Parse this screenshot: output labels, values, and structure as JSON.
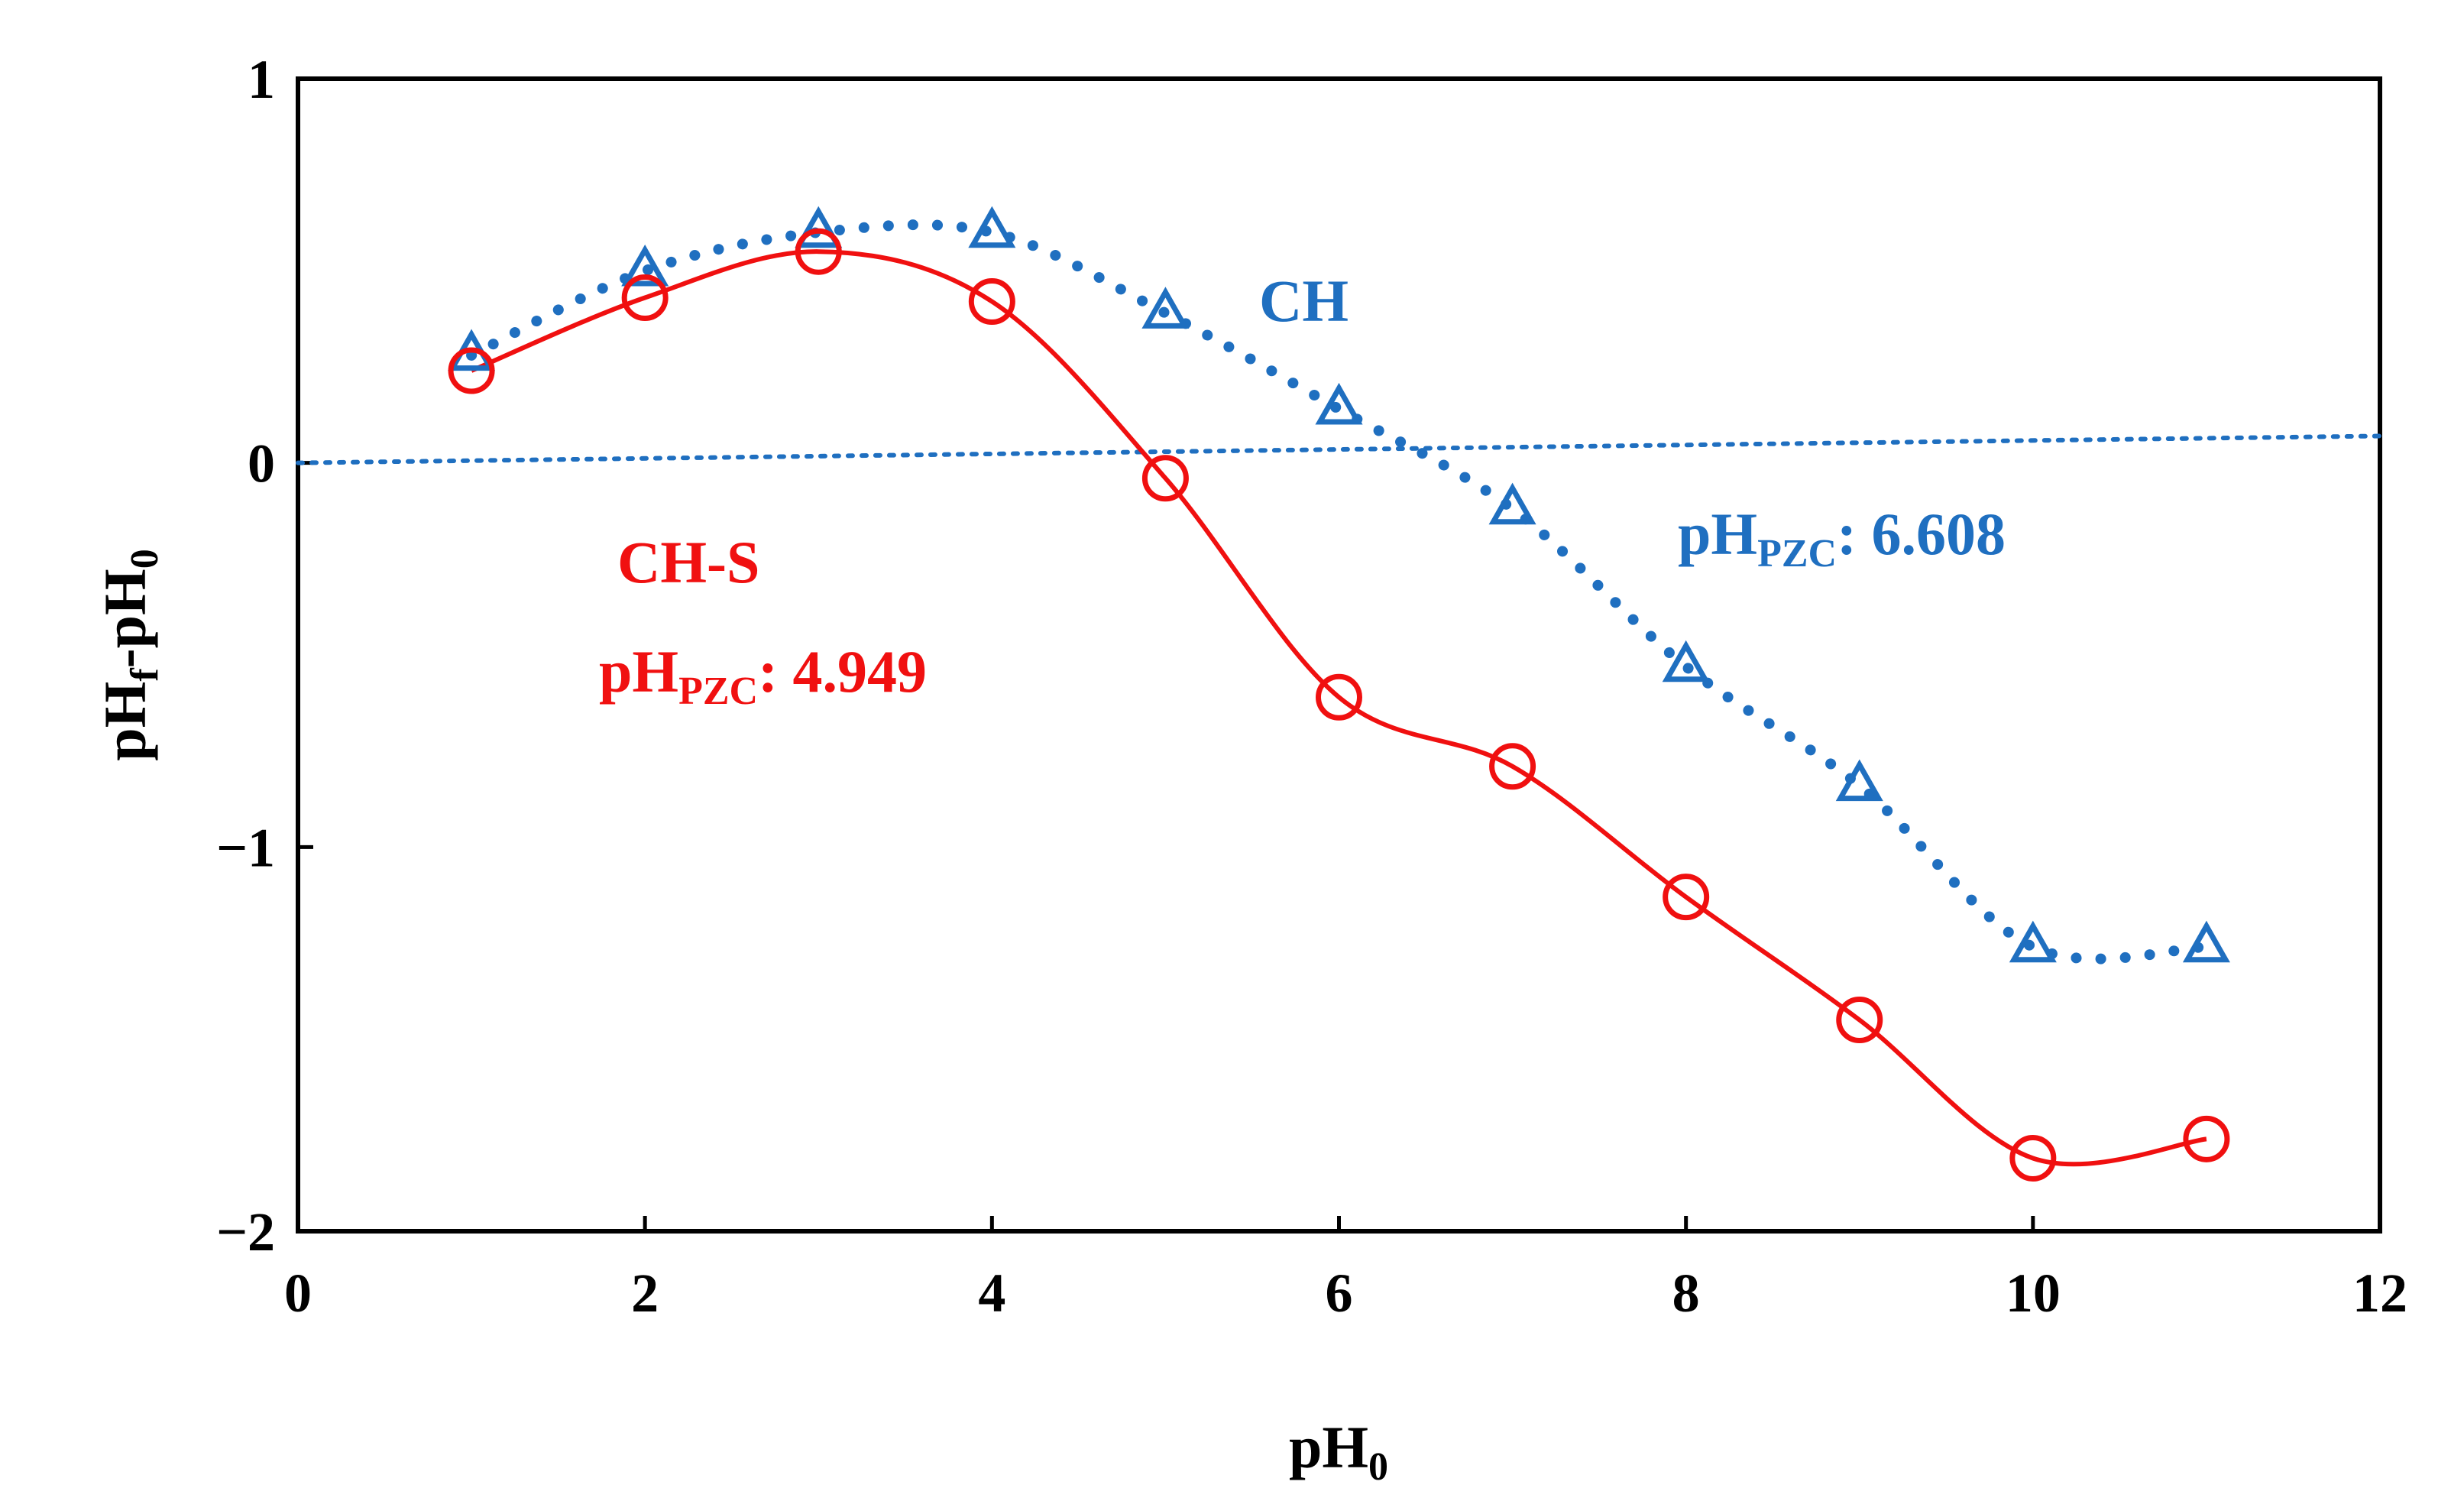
{
  "chart_data": {
    "type": "line",
    "title": "",
    "xlabel": {
      "main": "pH",
      "sub": "0"
    },
    "ylabel": {
      "main": "pH",
      "sub_f": "f",
      "sep": "-pH",
      "sub_0": "0"
    },
    "xlim": [
      0,
      12
    ],
    "ylim": [
      -2,
      1
    ],
    "xticks": [
      0,
      2,
      4,
      6,
      8,
      10,
      12
    ],
    "xtick_labels": [
      "0",
      "2",
      "4",
      "6",
      "8",
      "10",
      "12"
    ],
    "yticks": [
      -2,
      -1,
      0,
      1
    ],
    "ytick_labels": [
      "−2",
      "−1",
      "0",
      "1"
    ],
    "grid": false,
    "legend": "none",
    "series": [
      {
        "name": "CH",
        "color": "#1f6fc0",
        "marker": "triangle",
        "line_style": "dotted",
        "x": [
          1,
          2,
          3,
          4,
          5,
          6,
          7,
          8,
          9,
          10,
          11
        ],
        "y": [
          0.28,
          0.5,
          0.6,
          0.6,
          0.39,
          0.14,
          -0.12,
          -0.53,
          -0.84,
          -1.26,
          -1.26
        ]
      },
      {
        "name": "CH-S",
        "color": "#f01010",
        "marker": "circle",
        "line_style": "solid",
        "x": [
          1,
          2,
          3,
          4,
          5,
          6,
          7,
          8,
          9,
          10,
          11
        ],
        "y": [
          0.24,
          0.43,
          0.55,
          0.42,
          -0.04,
          -0.61,
          -0.79,
          -1.13,
          -1.45,
          -1.81,
          -1.76
        ]
      }
    ],
    "zero_reference_line": {
      "color": "#1f6fc0",
      "style": "dotted",
      "x": [
        0,
        12
      ],
      "y": [
        0,
        0.07
      ]
    },
    "annotations": [
      {
        "id": "ch-label",
        "text": "CH",
        "color": "#1f6fc0"
      },
      {
        "id": "ch-pzc",
        "prefix": "pH",
        "sub": "PZC",
        "suffix": ": 6.608",
        "color": "#1f6fc0"
      },
      {
        "id": "chs-label",
        "text": "CH-S",
        "color": "#f01010"
      },
      {
        "id": "chs-pzc",
        "prefix": "pH",
        "sub": "PZC",
        "suffix": ": 4.949",
        "color": "#f01010"
      }
    ]
  }
}
